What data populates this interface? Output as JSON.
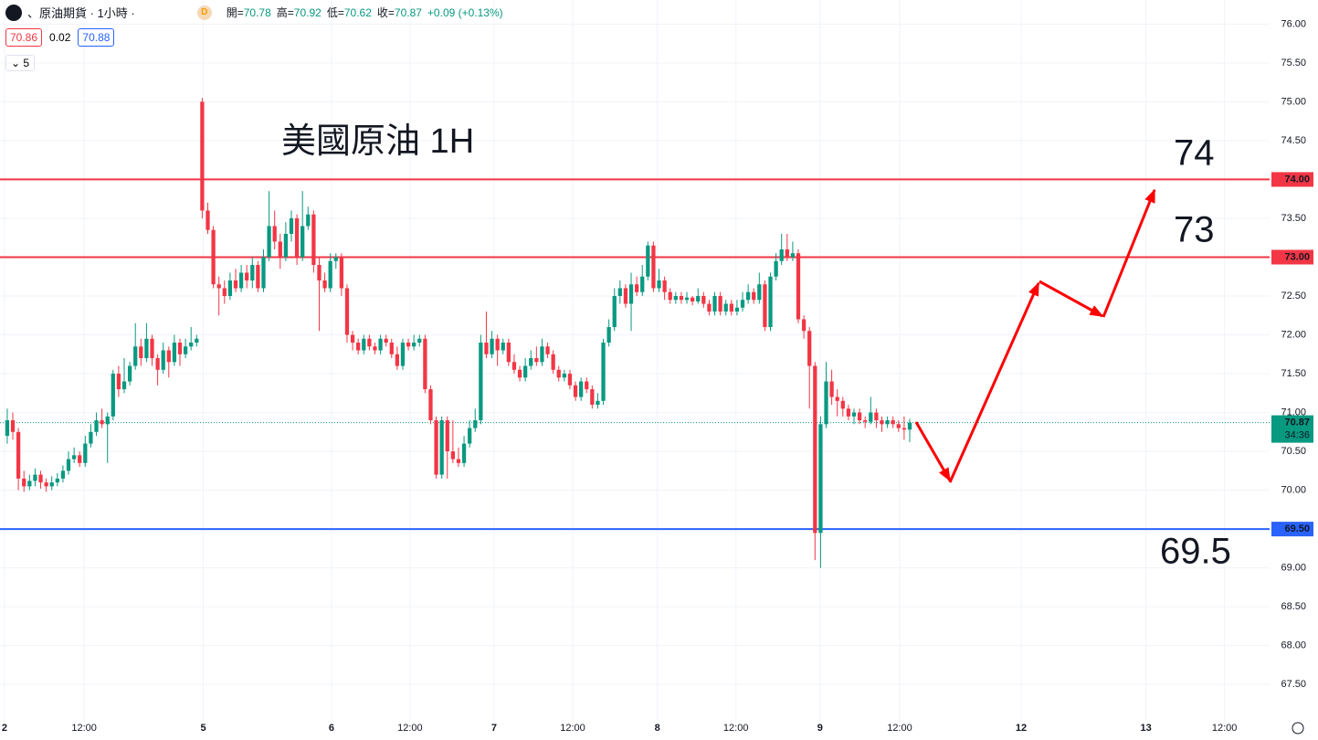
{
  "chart_data": {
    "type": "candlestick",
    "symbol": "、原油期貨 · 1小時 ·",
    "badge": "D",
    "ohlc_legend": [
      {
        "label": "開=",
        "value": "70.78"
      },
      {
        "label": "高=",
        "value": "70.92"
      },
      {
        "label": "低=",
        "value": "70.62"
      },
      {
        "label": "收=",
        "value": "70.87"
      }
    ],
    "change": "+0.09 (+0.13%)",
    "bid": "70.86",
    "spread": "0.02",
    "ask": "70.88",
    "interval_count": "5",
    "up_color": "#089981",
    "down_color": "#f23645",
    "open": [
      70.7,
      70.9,
      70.75,
      70.15,
      70.05,
      70.12,
      70.2,
      70.1,
      70.05,
      70.1,
      70.15,
      70.25,
      70.4,
      70.45,
      70.35,
      70.6,
      70.75,
      70.9,
      70.85,
      70.95,
      71.5,
      71.3,
      71.4,
      71.6,
      71.85,
      71.7,
      71.95,
      71.7,
      71.55,
      71.8,
      71.65,
      71.9,
      71.75,
      71.85,
      71.9,
      75.0,
      73.6,
      73.35,
      72.65,
      72.6,
      72.5,
      72.7,
      72.6,
      72.8,
      72.7,
      72.9,
      72.6,
      73.0,
      73.4,
      73.2,
      73.0,
      73.3,
      73.5,
      73.0,
      73.4,
      73.55,
      72.9,
      72.7,
      72.6,
      72.95,
      73.0,
      72.6,
      72.0,
      71.9,
      71.8,
      71.95,
      71.85,
      71.8,
      71.95,
      71.9,
      71.75,
      71.6,
      71.9,
      71.85,
      71.9,
      71.95,
      71.3,
      70.9,
      70.2,
      70.9,
      70.5,
      70.4,
      70.35,
      70.6,
      70.8,
      70.9,
      71.9,
      71.75,
      71.95,
      71.8,
      71.9,
      71.65,
      71.55,
      71.45,
      71.6,
      71.7,
      71.65,
      71.85,
      71.75,
      71.55,
      71.45,
      71.5,
      71.35,
      71.2,
      71.4,
      71.3,
      71.1,
      71.15,
      71.9,
      72.1,
      72.5,
      72.6,
      72.4,
      72.65,
      72.55,
      72.75,
      73.15,
      72.6,
      72.7,
      72.55,
      72.45,
      72.5,
      72.45,
      72.48,
      72.43,
      72.5,
      72.4,
      72.3,
      72.5,
      72.3,
      72.4,
      72.3,
      72.35,
      72.45,
      72.55,
      72.45,
      72.65,
      72.1,
      72.75,
      72.95,
      73.1,
      73.0,
      73.05,
      72.2,
      72.05,
      71.6,
      69.45,
      70.85,
      71.4,
      71.2,
      71.15,
      71.05,
      70.95,
      71.0,
      70.9,
      70.88,
      71.0,
      70.9,
      70.85,
      70.9,
      70.85,
      70.8,
      70.78
    ],
    "high": [
      71.05,
      71.0,
      70.8,
      70.25,
      70.2,
      70.28,
      70.25,
      70.15,
      70.18,
      70.22,
      70.32,
      70.5,
      70.55,
      70.5,
      70.7,
      70.85,
      71.0,
      71.05,
      71.0,
      71.55,
      71.6,
      71.7,
      71.65,
      72.15,
      71.95,
      72.15,
      72.0,
      71.75,
      71.9,
      71.85,
      72.0,
      71.95,
      71.95,
      72.1,
      72.0,
      75.05,
      73.7,
      73.4,
      72.75,
      72.7,
      72.8,
      72.85,
      72.9,
      72.9,
      73.0,
      72.95,
      73.1,
      73.85,
      73.6,
      73.3,
      73.45,
      73.6,
      73.55,
      73.85,
      73.65,
      73.6,
      73.0,
      72.8,
      73.05,
      73.05,
      73.05,
      72.65,
      72.05,
      71.95,
      72.0,
      72.0,
      71.9,
      72.0,
      72.0,
      71.95,
      71.85,
      71.95,
      71.95,
      72.0,
      72.0,
      72.0,
      71.35,
      70.95,
      70.95,
      70.95,
      70.9,
      70.55,
      70.7,
      70.9,
      71.05,
      72.0,
      72.3,
      72.05,
      72.0,
      71.95,
      71.95,
      71.75,
      71.6,
      71.7,
      71.8,
      71.85,
      71.95,
      71.9,
      71.8,
      71.6,
      71.55,
      71.55,
      71.4,
      71.45,
      71.45,
      71.35,
      71.25,
      71.95,
      72.2,
      72.6,
      72.7,
      72.65,
      72.8,
      72.75,
      72.9,
      73.2,
      73.2,
      72.85,
      72.75,
      72.6,
      72.55,
      72.55,
      72.55,
      72.5,
      72.6,
      72.55,
      72.45,
      72.55,
      72.55,
      72.45,
      72.45,
      72.45,
      72.55,
      72.65,
      72.6,
      72.8,
      72.7,
      72.8,
      73.05,
      73.3,
      73.3,
      73.2,
      73.1,
      72.25,
      72.1,
      71.65,
      70.95,
      71.65,
      71.55,
      71.3,
      71.2,
      71.1,
      71.05,
      71.05,
      70.95,
      71.2,
      71.05,
      70.95,
      70.95,
      70.95,
      70.9,
      70.95,
      70.92
    ],
    "low": [
      70.6,
      70.65,
      70.0,
      69.98,
      70.0,
      70.05,
      70.02,
      69.98,
      70.0,
      70.05,
      70.1,
      70.2,
      70.35,
      70.3,
      70.3,
      70.55,
      70.7,
      70.8,
      70.35,
      70.9,
      71.2,
      71.25,
      71.35,
      71.55,
      71.6,
      71.65,
      71.6,
      71.35,
      71.5,
      71.45,
      71.6,
      71.6,
      71.7,
      71.8,
      71.85,
      73.5,
      73.3,
      72.6,
      72.25,
      72.4,
      72.45,
      72.55,
      72.55,
      72.6,
      72.6,
      72.55,
      72.55,
      72.95,
      73.1,
      72.85,
      72.95,
      73.2,
      72.9,
      72.95,
      73.35,
      72.8,
      72.05,
      72.55,
      72.55,
      72.85,
      72.5,
      71.9,
      71.8,
      71.75,
      71.75,
      71.8,
      71.75,
      71.75,
      71.85,
      71.7,
      71.55,
      71.55,
      71.8,
      71.8,
      71.85,
      71.25,
      70.85,
      70.15,
      70.15,
      70.15,
      70.35,
      70.3,
      70.3,
      70.55,
      70.75,
      70.85,
      71.7,
      71.7,
      71.6,
      71.75,
      71.6,
      71.5,
      71.4,
      71.4,
      71.55,
      71.6,
      71.6,
      71.7,
      71.5,
      71.4,
      71.4,
      71.3,
      71.15,
      71.15,
      71.25,
      71.05,
      71.05,
      71.1,
      71.85,
      72.05,
      72.4,
      72.35,
      72.05,
      72.5,
      72.5,
      72.7,
      72.55,
      72.55,
      72.45,
      72.4,
      72.4,
      72.4,
      72.4,
      72.38,
      72.4,
      72.35,
      72.25,
      72.25,
      72.25,
      72.25,
      72.25,
      72.25,
      72.3,
      72.4,
      72.4,
      72.4,
      72.05,
      72.05,
      72.7,
      72.9,
      72.95,
      72.95,
      72.15,
      71.95,
      71.05,
      69.1,
      69.0,
      70.8,
      71.1,
      70.95,
      70.95,
      70.9,
      70.85,
      70.85,
      70.8,
      70.85,
      70.8,
      70.75,
      70.8,
      70.8,
      70.75,
      70.65,
      70.62
    ],
    "close": [
      70.9,
      70.75,
      70.15,
      70.05,
      70.12,
      70.2,
      70.1,
      70.05,
      70.1,
      70.15,
      70.25,
      70.4,
      70.45,
      70.35,
      70.6,
      70.75,
      70.9,
      70.85,
      70.95,
      71.5,
      71.3,
      71.4,
      71.6,
      71.85,
      71.7,
      71.95,
      71.7,
      71.55,
      71.8,
      71.65,
      71.9,
      71.75,
      71.85,
      71.9,
      71.95,
      73.6,
      73.35,
      72.65,
      72.6,
      72.5,
      72.7,
      72.6,
      72.8,
      72.7,
      72.9,
      72.6,
      73.0,
      73.4,
      73.2,
      73.0,
      73.3,
      73.5,
      73.0,
      73.4,
      73.55,
      72.9,
      72.7,
      72.6,
      72.95,
      73.0,
      72.6,
      72.0,
      71.9,
      71.8,
      71.95,
      71.85,
      71.8,
      71.95,
      71.9,
      71.75,
      71.6,
      71.9,
      71.85,
      71.9,
      71.95,
      71.3,
      70.9,
      70.2,
      70.9,
      70.5,
      70.4,
      70.35,
      70.6,
      70.8,
      70.9,
      71.9,
      71.75,
      71.95,
      71.8,
      71.9,
      71.65,
      71.55,
      71.45,
      71.6,
      71.7,
      71.65,
      71.85,
      71.75,
      71.55,
      71.45,
      71.5,
      71.35,
      71.2,
      71.4,
      71.3,
      71.1,
      71.15,
      71.9,
      72.1,
      72.5,
      72.6,
      72.4,
      72.65,
      72.55,
      72.75,
      73.15,
      72.6,
      72.7,
      72.55,
      72.45,
      72.5,
      72.45,
      72.48,
      72.43,
      72.5,
      72.4,
      72.3,
      72.5,
      72.3,
      72.4,
      72.3,
      72.35,
      72.45,
      72.55,
      72.45,
      72.65,
      72.1,
      72.75,
      72.95,
      73.1,
      73.0,
      73.05,
      72.2,
      72.05,
      71.6,
      69.45,
      70.85,
      71.4,
      71.2,
      71.15,
      71.05,
      70.95,
      71.0,
      70.9,
      70.88,
      71.0,
      70.9,
      70.85,
      70.9,
      70.85,
      70.8,
      70.78,
      70.87
    ],
    "xlim": [
      -1.3,
      226.6
    ],
    "xticks": [
      {
        "value": -0.5,
        "label": "2"
      },
      {
        "value": 13.8,
        "label": "12:00"
      },
      {
        "value": 35.2,
        "label": "5"
      },
      {
        "value": 58.2,
        "label": "6"
      },
      {
        "value": 72.3,
        "label": "12:00"
      },
      {
        "value": 87.4,
        "label": "7"
      },
      {
        "value": 101.5,
        "label": "12:00"
      },
      {
        "value": 116.7,
        "label": "8"
      },
      {
        "value": 130.8,
        "label": "12:00"
      },
      {
        "value": 145.9,
        "label": "9"
      },
      {
        "value": 160.2,
        "label": "12:00"
      },
      {
        "value": 182,
        "label": "12"
      },
      {
        "value": 204.4,
        "label": "13"
      },
      {
        "value": 218.5,
        "label": "12:00"
      }
    ],
    "ylim": [
      67.02,
      76.31
    ],
    "yticks": [
      {
        "value": 67.5,
        "label": "67.50"
      },
      {
        "value": 68,
        "label": "68.00"
      },
      {
        "value": 68.5,
        "label": "68.50"
      },
      {
        "value": 69,
        "label": "69.00"
      },
      {
        "value": 69.5,
        "label": "69.50"
      },
      {
        "value": 70,
        "label": "70.00"
      },
      {
        "value": 70.5,
        "label": "70.50"
      },
      {
        "value": 71,
        "label": "71.00"
      },
      {
        "value": 71.5,
        "label": "71.50"
      },
      {
        "value": 72,
        "label": "72.00"
      },
      {
        "value": 72.5,
        "label": "72.50"
      },
      {
        "value": 73,
        "label": "73.00"
      },
      {
        "value": 73.5,
        "label": "73.50"
      },
      {
        "value": 74,
        "label": "74.00"
      },
      {
        "value": 74.5,
        "label": "74.50"
      },
      {
        "value": 75,
        "label": "75.00"
      },
      {
        "value": 75.5,
        "label": "75.50"
      },
      {
        "value": 76,
        "label": "76.00"
      }
    ],
    "grid": true,
    "levels": [
      {
        "value": 74,
        "label": "74.00",
        "color": "#f23645"
      },
      {
        "value": 73,
        "label": "73.00",
        "color": "#f23645"
      },
      {
        "value": 69.5,
        "label": "69.50",
        "color": "#2962ff"
      }
    ],
    "last_price": {
      "value": 70.87,
      "label": "70.87",
      "countdown": "34:36",
      "color": "#089981"
    },
    "annotations": [
      {
        "text": "美國原油 1H",
        "color": "#f23645"
      },
      {
        "text": "74",
        "color": "#f23645"
      },
      {
        "text": "73",
        "color": "#f23645"
      },
      {
        "text": "69.5",
        "color": "#2962ff"
      }
    ]
  }
}
